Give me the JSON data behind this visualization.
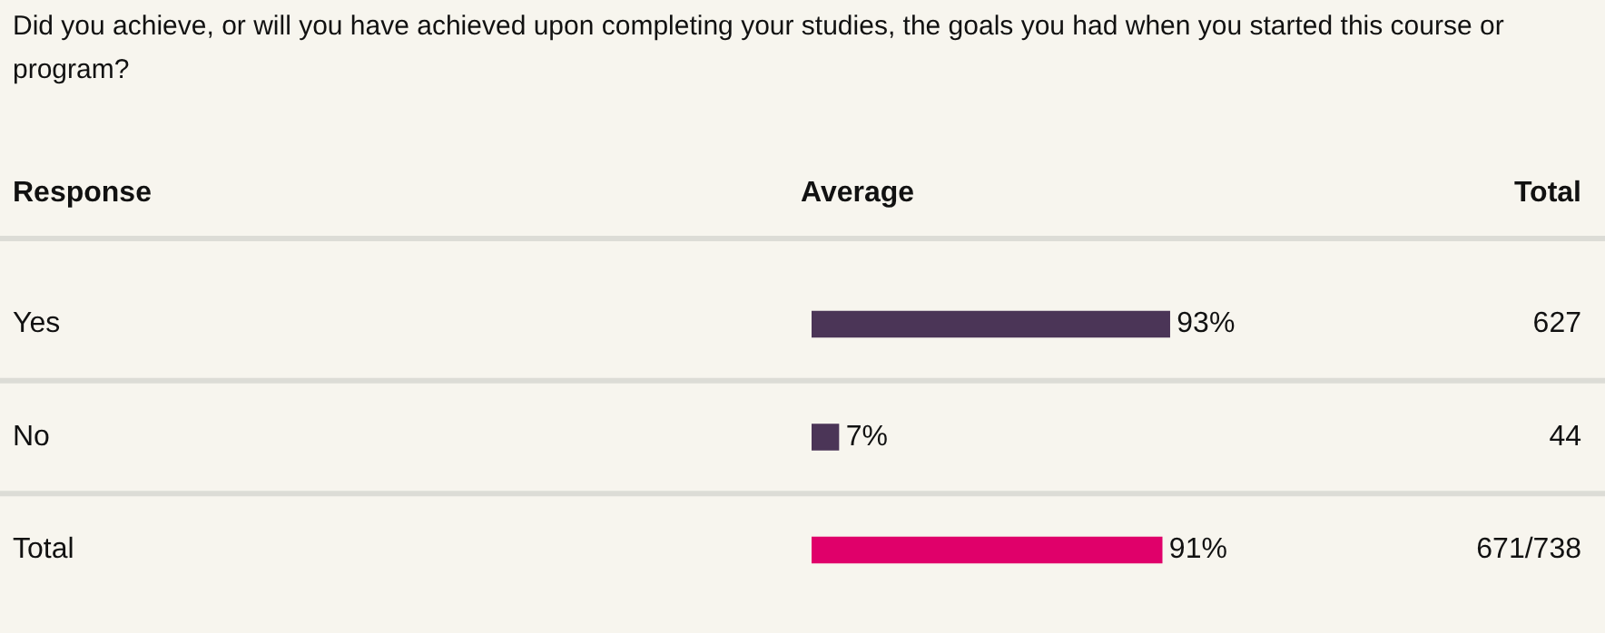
{
  "chart_data": {
    "type": "bar",
    "orientation": "horizontal",
    "title": "Did you achieve, or will you have achieved upon completing your studies, the goals you had when you started this course or program?",
    "ylabel": "Response",
    "xlabel": "Average",
    "categories": [
      "Yes",
      "No",
      "Total"
    ],
    "values": [
      93,
      7,
      91
    ],
    "colors": [
      "#4b3557",
      "#4b3557",
      "#e0006a"
    ],
    "value_labels": [
      "93%",
      "7%",
      "91%"
    ],
    "tick_labels": "y",
    "annotations": [
      "Total",
      "627",
      "44",
      "671/738"
    ]
  }
}
